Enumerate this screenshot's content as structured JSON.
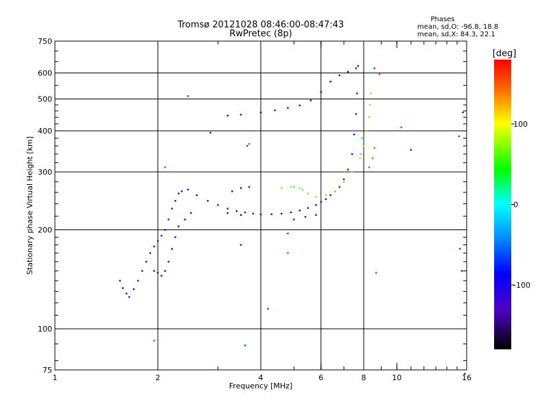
{
  "chart_data": {
    "type": "scatter",
    "title": "Tromsø 20121028 08:46:00-08:47:43",
    "subtitle": "RwPretec (8p)",
    "xlabel": "Frequency [MHz]",
    "ylabel": "Stationary phase Virtual Height [km]",
    "x_scale": "log",
    "y_scale": "log",
    "xlim": [
      1,
      16
    ],
    "ylim": [
      75,
      750
    ],
    "x_ticks": [
      1,
      2,
      4,
      6,
      8,
      10,
      16
    ],
    "y_ticks": [
      75,
      100,
      200,
      300,
      400,
      500,
      600,
      750
    ],
    "x_grid": [
      2,
      4,
      6,
      8
    ],
    "y_grid": [
      100,
      200,
      300,
      400,
      500,
      600
    ],
    "grid": true,
    "stats": {
      "heading": "Phases",
      "line_o": "mean, sd,O: -96.8, 18.8",
      "line_x": "mean, sd,X:  84.3, 22.1"
    },
    "colorbar": {
      "label": "[deg]",
      "range": [
        -180,
        180
      ],
      "ticks": [
        100,
        0,
        -100
      ],
      "colormap": "rainbow"
    },
    "series": [
      {
        "color_value": -110,
        "points": [
          [
            1.55,
            140
          ],
          [
            1.58,
            133
          ],
          [
            1.62,
            128
          ],
          [
            1.65,
            125
          ],
          [
            1.7,
            132
          ],
          [
            1.75,
            140
          ],
          [
            1.8,
            150
          ],
          [
            1.85,
            160
          ],
          [
            1.9,
            170
          ],
          [
            1.95,
            178
          ],
          [
            2.0,
            185
          ],
          [
            2.05,
            192
          ],
          [
            2.1,
            200
          ],
          [
            2.15,
            215
          ],
          [
            2.2,
            232
          ],
          [
            2.25,
            245
          ],
          [
            2.3,
            258
          ],
          [
            2.35,
            262
          ],
          [
            2.45,
            265
          ],
          [
            2.6,
            255
          ],
          [
            2.8,
            245
          ],
          [
            3.0,
            238
          ],
          [
            3.2,
            232
          ],
          [
            3.4,
            228
          ],
          [
            3.6,
            226
          ],
          [
            3.8,
            224
          ],
          [
            4.0,
            223
          ],
          [
            4.3,
            223
          ],
          [
            4.6,
            224
          ],
          [
            4.9,
            226
          ],
          [
            5.2,
            229
          ],
          [
            5.5,
            233
          ],
          [
            5.8,
            238
          ],
          [
            6.0,
            243
          ],
          [
            6.2,
            248
          ],
          [
            6.4,
            255
          ],
          [
            6.6,
            262
          ],
          [
            6.8,
            270
          ],
          [
            7.0,
            285
          ],
          [
            7.2,
            305
          ],
          [
            7.4,
            340
          ],
          [
            7.5,
            390
          ],
          [
            7.6,
            450
          ],
          [
            7.65,
            520
          ]
        ]
      },
      {
        "color_value": -100,
        "points": [
          [
            1.95,
            150
          ],
          [
            2.0,
            148
          ],
          [
            2.05,
            145
          ],
          [
            2.1,
            150
          ],
          [
            2.15,
            160
          ],
          [
            2.2,
            175
          ],
          [
            2.25,
            190
          ],
          [
            2.3,
            205
          ],
          [
            2.4,
            215
          ],
          [
            2.5,
            225
          ],
          [
            3.3,
            262
          ],
          [
            3.5,
            268
          ],
          [
            3.7,
            270
          ]
        ]
      },
      {
        "color_value": -105,
        "points": [
          [
            2.85,
            395
          ],
          [
            3.2,
            445
          ],
          [
            3.5,
            448
          ],
          [
            4.0,
            455
          ],
          [
            4.4,
            462
          ],
          [
            4.8,
            470
          ],
          [
            5.2,
            478
          ],
          [
            5.6,
            495
          ],
          [
            6.0,
            525
          ],
          [
            6.4,
            565
          ],
          [
            6.8,
            590
          ],
          [
            7.2,
            605
          ],
          [
            7.6,
            620
          ],
          [
            7.7,
            630
          ]
        ]
      },
      {
        "color_value": 120,
        "points": [
          [
            4.6,
            268
          ],
          [
            4.9,
            270
          ],
          [
            5.2,
            268
          ],
          [
            5.5,
            258
          ],
          [
            5.8,
            252
          ],
          [
            6.2,
            255
          ],
          [
            6.6,
            262
          ],
          [
            7.0,
            280
          ],
          [
            7.4,
            300
          ],
          [
            7.8,
            330
          ],
          [
            8.0,
            360
          ],
          [
            8.2,
            400
          ],
          [
            8.3,
            440
          ],
          [
            8.35,
            480
          ],
          [
            8.4,
            520
          ]
        ]
      },
      {
        "color_value": 150,
        "points": [
          [
            8.3,
            310
          ],
          [
            8.5,
            330
          ],
          [
            8.6,
            355
          ]
        ]
      },
      {
        "color_value": 10,
        "points": [
          [
            7.85,
            340
          ],
          [
            7.9,
            380
          ],
          [
            5.0,
            270
          ],
          [
            5.3,
            265
          ]
        ]
      },
      {
        "color_value": -140,
        "points": [
          [
            5.0,
            215
          ],
          [
            5.4,
            219
          ],
          [
            5.8,
            222
          ],
          [
            3.2,
            225
          ],
          [
            3.5,
            222
          ]
        ]
      },
      {
        "color_value": 160,
        "points": [
          [
            2.1,
            310
          ],
          [
            3.7,
            365
          ],
          [
            8.9,
            595
          ],
          [
            8.7,
            148
          ],
          [
            1.95,
            92
          ],
          [
            10.3,
            410
          ],
          [
            4.8,
            170
          ]
        ]
      },
      {
        "color_value": -60,
        "points": [
          [
            3.65,
            360
          ],
          [
            8.6,
            620
          ],
          [
            15.2,
            385
          ],
          [
            15.3,
            175
          ],
          [
            4.2,
            115
          ],
          [
            3.6,
            89
          ],
          [
            2.45,
            510
          ],
          [
            4.8,
            195
          ]
        ]
      },
      {
        "color_value": -120,
        "points": [
          [
            11.0,
            350
          ],
          [
            15.5,
            150
          ],
          [
            15.6,
            455
          ],
          [
            15.8,
            73
          ],
          [
            3.5,
            180
          ]
        ]
      }
    ]
  }
}
